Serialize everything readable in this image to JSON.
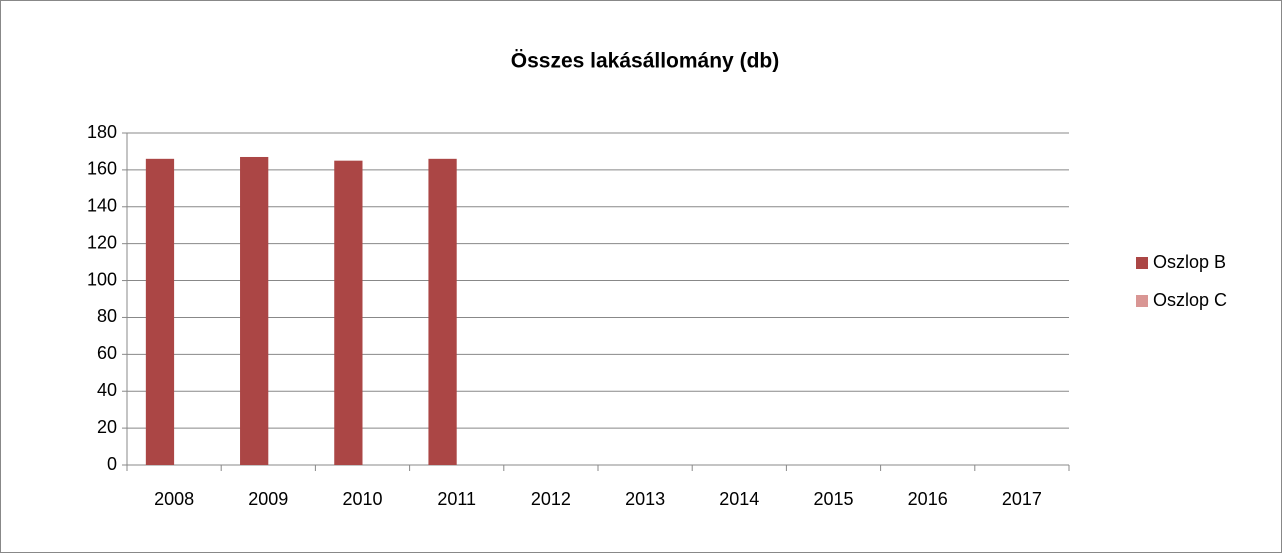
{
  "chart_data": {
    "type": "bar",
    "title": "Összes lakásállomány (db)",
    "categories": [
      "2008",
      "2009",
      "2010",
      "2011",
      "2012",
      "2013",
      "2014",
      "2015",
      "2016",
      "2017"
    ],
    "series": [
      {
        "name": "Oszlop B",
        "color": "#ab4645",
        "values": [
          166,
          167,
          165,
          166,
          null,
          null,
          null,
          null,
          null,
          null
        ]
      },
      {
        "name": "Oszlop C",
        "color": "#d99694",
        "values": [
          null,
          null,
          null,
          null,
          null,
          null,
          null,
          null,
          null,
          null
        ]
      }
    ],
    "ylim": [
      0,
      180
    ],
    "yticks": [
      0,
      20,
      40,
      60,
      80,
      100,
      120,
      140,
      160,
      180
    ],
    "grid": true,
    "legend": "right"
  }
}
